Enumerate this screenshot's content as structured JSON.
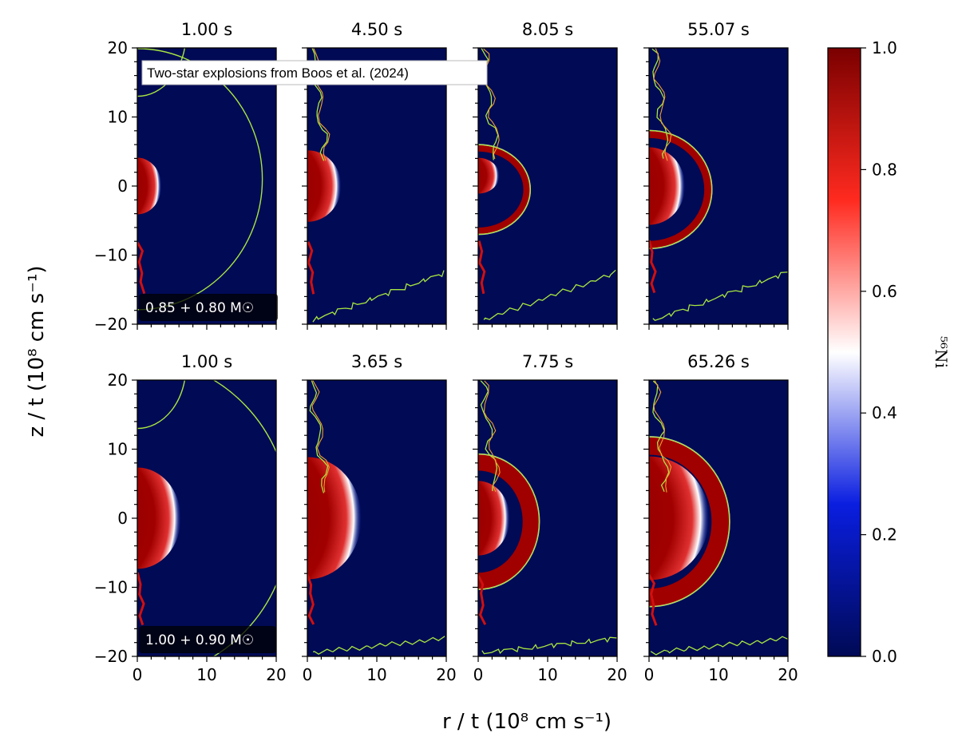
{
  "chart_data": {
    "type": "heatmap",
    "xlabel": "r / t (10⁸ cm s⁻¹)",
    "ylabel": "z / t (10⁸ cm s⁻¹)",
    "xlim": [
      0,
      20
    ],
    "ylim": [
      -20,
      20
    ],
    "xticks": [
      "0",
      "10",
      "20"
    ],
    "yticks": [
      "20",
      "10",
      "0",
      "−10",
      "−20"
    ],
    "colorbar": {
      "label": "⁵⁶Ni",
      "range": [
        0.0,
        1.0
      ],
      "ticks": [
        "0.0",
        "0.2",
        "0.4",
        "0.6",
        "0.8",
        "1.0"
      ],
      "cmap": [
        "#000a55",
        "#0015ff",
        "#ffffff",
        "#ff2a1f",
        "#7a0000"
      ]
    },
    "annotation": "Two-star explosions from Boos et al. (2024)",
    "contour_colors": [
      "#a8e640",
      "#f0a030"
    ],
    "background_color": "#000a55",
    "rows": [
      {
        "label": "0.85 + 0.80 M☉",
        "panels": [
          {
            "title": "1.00 s"
          },
          {
            "title": "4.50 s"
          },
          {
            "title": "8.05 s"
          },
          {
            "title": "55.07 s"
          }
        ]
      },
      {
        "label": "1.00 + 0.90 M☉",
        "panels": [
          {
            "title": "1.00 s"
          },
          {
            "title": "3.65 s"
          },
          {
            "title": "7.75 s"
          },
          {
            "title": "65.26 s"
          }
        ]
      }
    ]
  }
}
